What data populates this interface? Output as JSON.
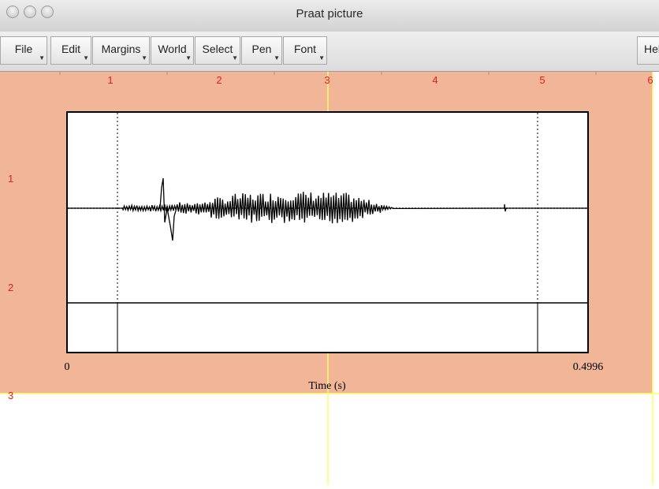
{
  "window": {
    "title": "Praat picture"
  },
  "menus": [
    "File",
    "Edit",
    "Margins",
    "World",
    "Select",
    "Pen",
    "Font",
    "Help"
  ],
  "picture": {
    "ruler_top": [
      "1",
      "2",
      "3",
      "4",
      "5",
      "6"
    ],
    "ruler_left": [
      "1",
      "2",
      "3"
    ],
    "x_axis": {
      "label": "Time (s)",
      "min_label": "0",
      "max_label": "0.4996"
    }
  },
  "colors": {
    "selection": "#f1b597",
    "inch_marks": "#e02020",
    "viewport_line": "#ffff66"
  }
}
